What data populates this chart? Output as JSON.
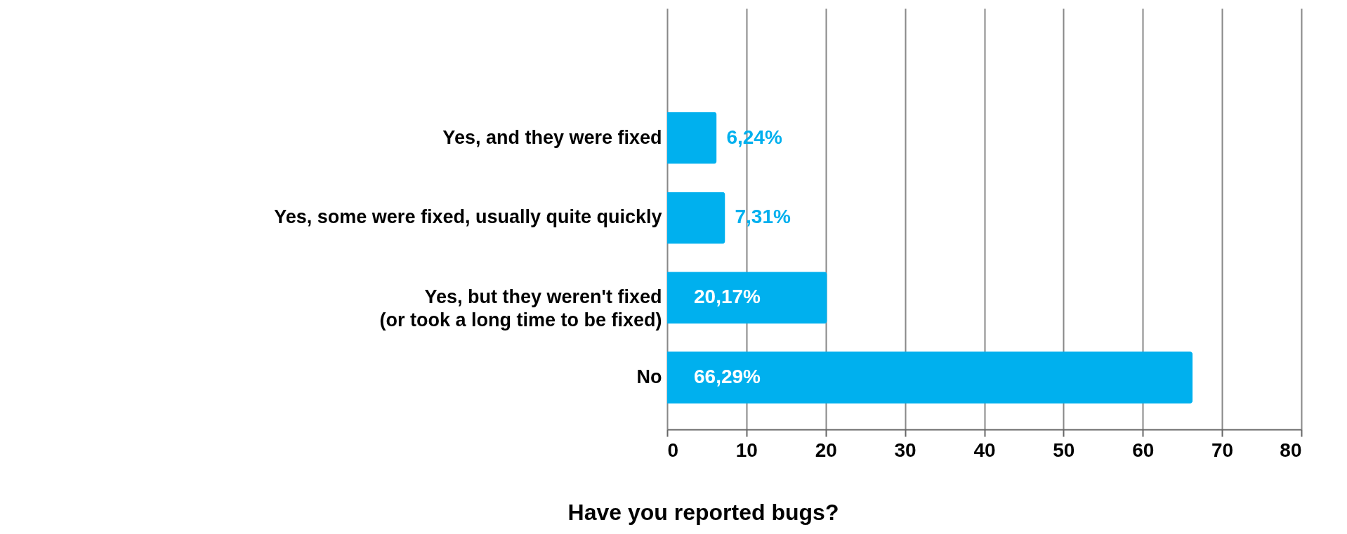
{
  "chart_data": {
    "type": "bar",
    "orientation": "horizontal",
    "title": "Have you reported bugs?",
    "categories": [
      "Yes, and they were fixed",
      "Yes, some were fixed, usually quite quickly",
      "Yes, but they weren't fixed\n(or took a long time to be fixed)",
      "No"
    ],
    "values": [
      6.24,
      7.31,
      20.17,
      66.29
    ],
    "value_labels": [
      "6,24%",
      "7,31%",
      "20,17%",
      "66,29%"
    ],
    "color": "#00b0ee",
    "xlim": [
      0,
      80
    ],
    "xticks": [
      0,
      10,
      20,
      30,
      40,
      50,
      60,
      70,
      80
    ],
    "grid": "x"
  }
}
